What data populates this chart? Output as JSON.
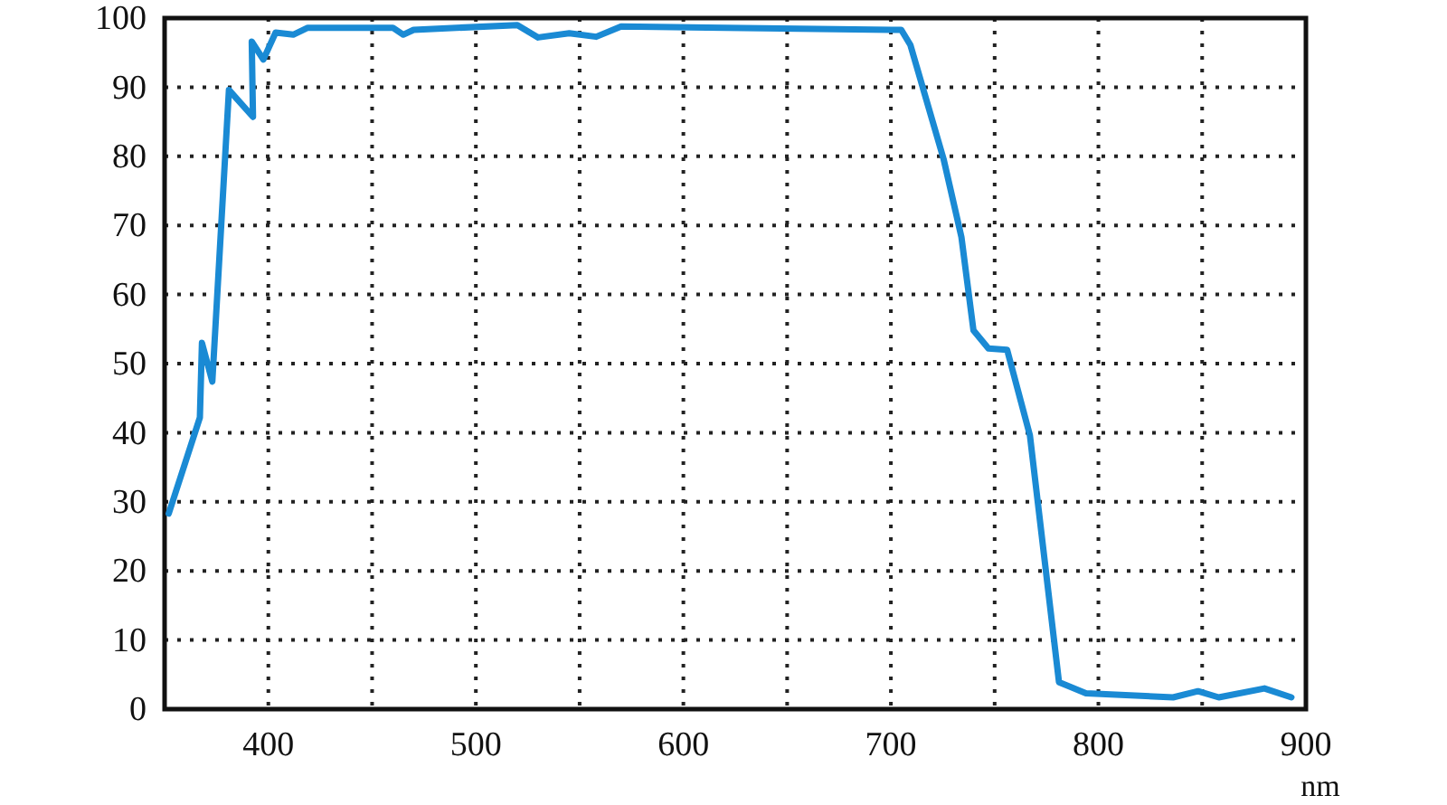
{
  "chart_data": {
    "type": "line",
    "xlabel": "nm",
    "x": [
      352,
      367,
      368,
      373,
      381,
      392.6,
      392,
      397.6,
      403.5,
      412,
      419,
      451,
      460,
      465,
      470,
      520,
      530,
      545,
      558,
      570,
      700,
      705,
      709.4,
      725.4,
      734,
      739.8,
      747,
      756,
      767,
      781,
      794,
      836,
      848,
      858,
      880,
      893
    ],
    "series": [
      {
        "color": "#1a8ad4",
        "values": [
          28.3,
          42.2,
          53,
          47.4,
          89.6,
          85.7,
          96.6,
          94,
          97.9,
          97.6,
          98.6,
          98.6,
          98.6,
          97.6,
          98.3,
          99,
          97.2,
          97.8,
          97.3,
          98.8,
          98.3,
          98.3,
          96.1,
          79.6,
          68.3,
          54.8,
          52.2,
          52,
          39.6,
          3.9,
          2.3,
          1.7,
          2.6,
          1.7,
          3.0,
          1.7
        ]
      }
    ],
    "xlim": [
      350,
      900
    ],
    "ylim": [
      0,
      100
    ],
    "xticks": [
      {
        "value": 350,
        "label": null
      },
      400,
      {
        "value": 450,
        "label": null
      },
      500,
      {
        "value": 550,
        "label": null
      },
      600,
      {
        "value": 650,
        "label": null
      },
      700,
      {
        "value": 750,
        "label": null
      },
      800,
      {
        "value": 850,
        "label": null
      },
      900
    ],
    "yticks": [
      0,
      10,
      20,
      30,
      40,
      50,
      60,
      70,
      80,
      90,
      100
    ],
    "grid": true,
    "line_style": "solid",
    "marker": "none"
  }
}
